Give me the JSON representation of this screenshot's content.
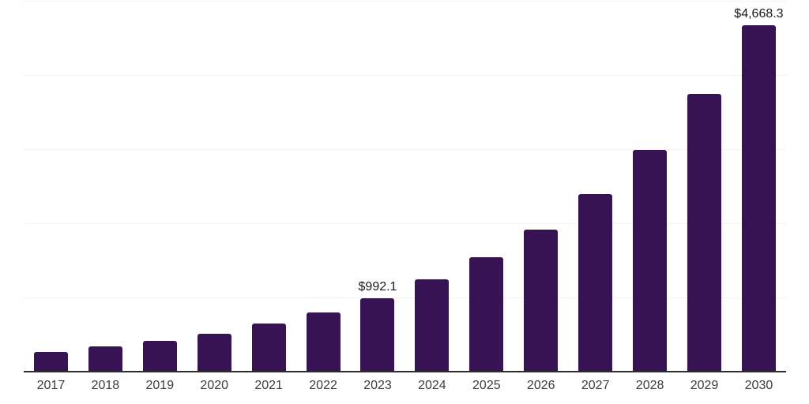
{
  "chart": {
    "colors": {
      "background": "#ffffff",
      "bar": "#371353",
      "axis_line": "#2d2d2d",
      "gridline": "#f2f2f2",
      "tick_label": "#3d3d3d",
      "data_label": "#1a1a1a"
    }
  },
  "chart_data": {
    "type": "bar",
    "title": "",
    "xlabel": "",
    "ylabel": "",
    "categories": [
      "2017",
      "2018",
      "2019",
      "2020",
      "2021",
      "2022",
      "2023",
      "2024",
      "2025",
      "2026",
      "2027",
      "2028",
      "2029",
      "2030"
    ],
    "values": [
      270,
      345,
      415,
      515,
      650,
      800,
      992.1,
      1240,
      1540,
      1920,
      2390,
      2990,
      3740,
      4668.3
    ],
    "point_labels": [
      {
        "category": "2023",
        "text": "$992.1"
      },
      {
        "category": "2030",
        "text": "$4,668.3"
      }
    ],
    "ylim": [
      0,
      5000
    ],
    "gridlines": [
      1000,
      2000,
      3000,
      4000,
      5000
    ],
    "grid": true,
    "legend": false,
    "y_axis_labels_visible": false
  }
}
